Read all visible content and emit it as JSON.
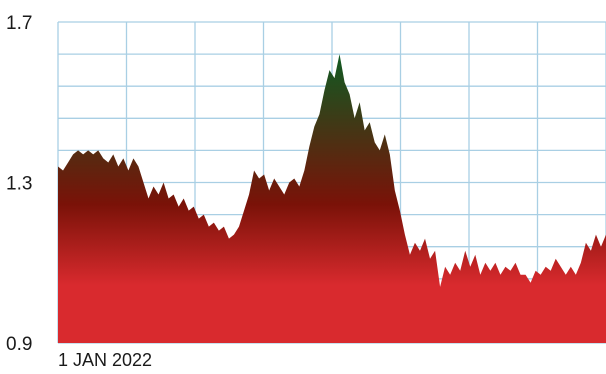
{
  "chart_data": {
    "type": "area",
    "title": "",
    "xlabel": "",
    "ylabel": "",
    "ylim": [
      0.9,
      1.7
    ],
    "yticks": [
      "1.7",
      "1.3",
      "0.9"
    ],
    "x_start_label": "1 JAN 2022",
    "grid": true,
    "gradient_colors": {
      "top": "#0f5a22",
      "middle": "#7a1208",
      "bottom": "#d92a2e"
    },
    "grid_color": "#a9cfe4",
    "series": [
      {
        "values": [
          1.34,
          1.33,
          1.35,
          1.37,
          1.38,
          1.37,
          1.38,
          1.37,
          1.38,
          1.36,
          1.35,
          1.37,
          1.34,
          1.36,
          1.33,
          1.36,
          1.34,
          1.3,
          1.26,
          1.29,
          1.27,
          1.3,
          1.26,
          1.27,
          1.24,
          1.26,
          1.23,
          1.24,
          1.21,
          1.22,
          1.19,
          1.2,
          1.18,
          1.19,
          1.16,
          1.17,
          1.19,
          1.23,
          1.27,
          1.33,
          1.31,
          1.32,
          1.28,
          1.31,
          1.29,
          1.27,
          1.3,
          1.31,
          1.29,
          1.33,
          1.39,
          1.44,
          1.47,
          1.53,
          1.58,
          1.56,
          1.62,
          1.55,
          1.52,
          1.46,
          1.5,
          1.43,
          1.45,
          1.4,
          1.38,
          1.42,
          1.37,
          1.28,
          1.23,
          1.17,
          1.12,
          1.15,
          1.13,
          1.16,
          1.11,
          1.13,
          1.04,
          1.09,
          1.07,
          1.1,
          1.08,
          1.13,
          1.09,
          1.12,
          1.07,
          1.1,
          1.08,
          1.1,
          1.07,
          1.09,
          1.08,
          1.1,
          1.07,
          1.07,
          1.05,
          1.08,
          1.07,
          1.09,
          1.08,
          1.11,
          1.09,
          1.07,
          1.09,
          1.07,
          1.1,
          1.15,
          1.13,
          1.17,
          1.14,
          1.17
        ]
      }
    ]
  }
}
